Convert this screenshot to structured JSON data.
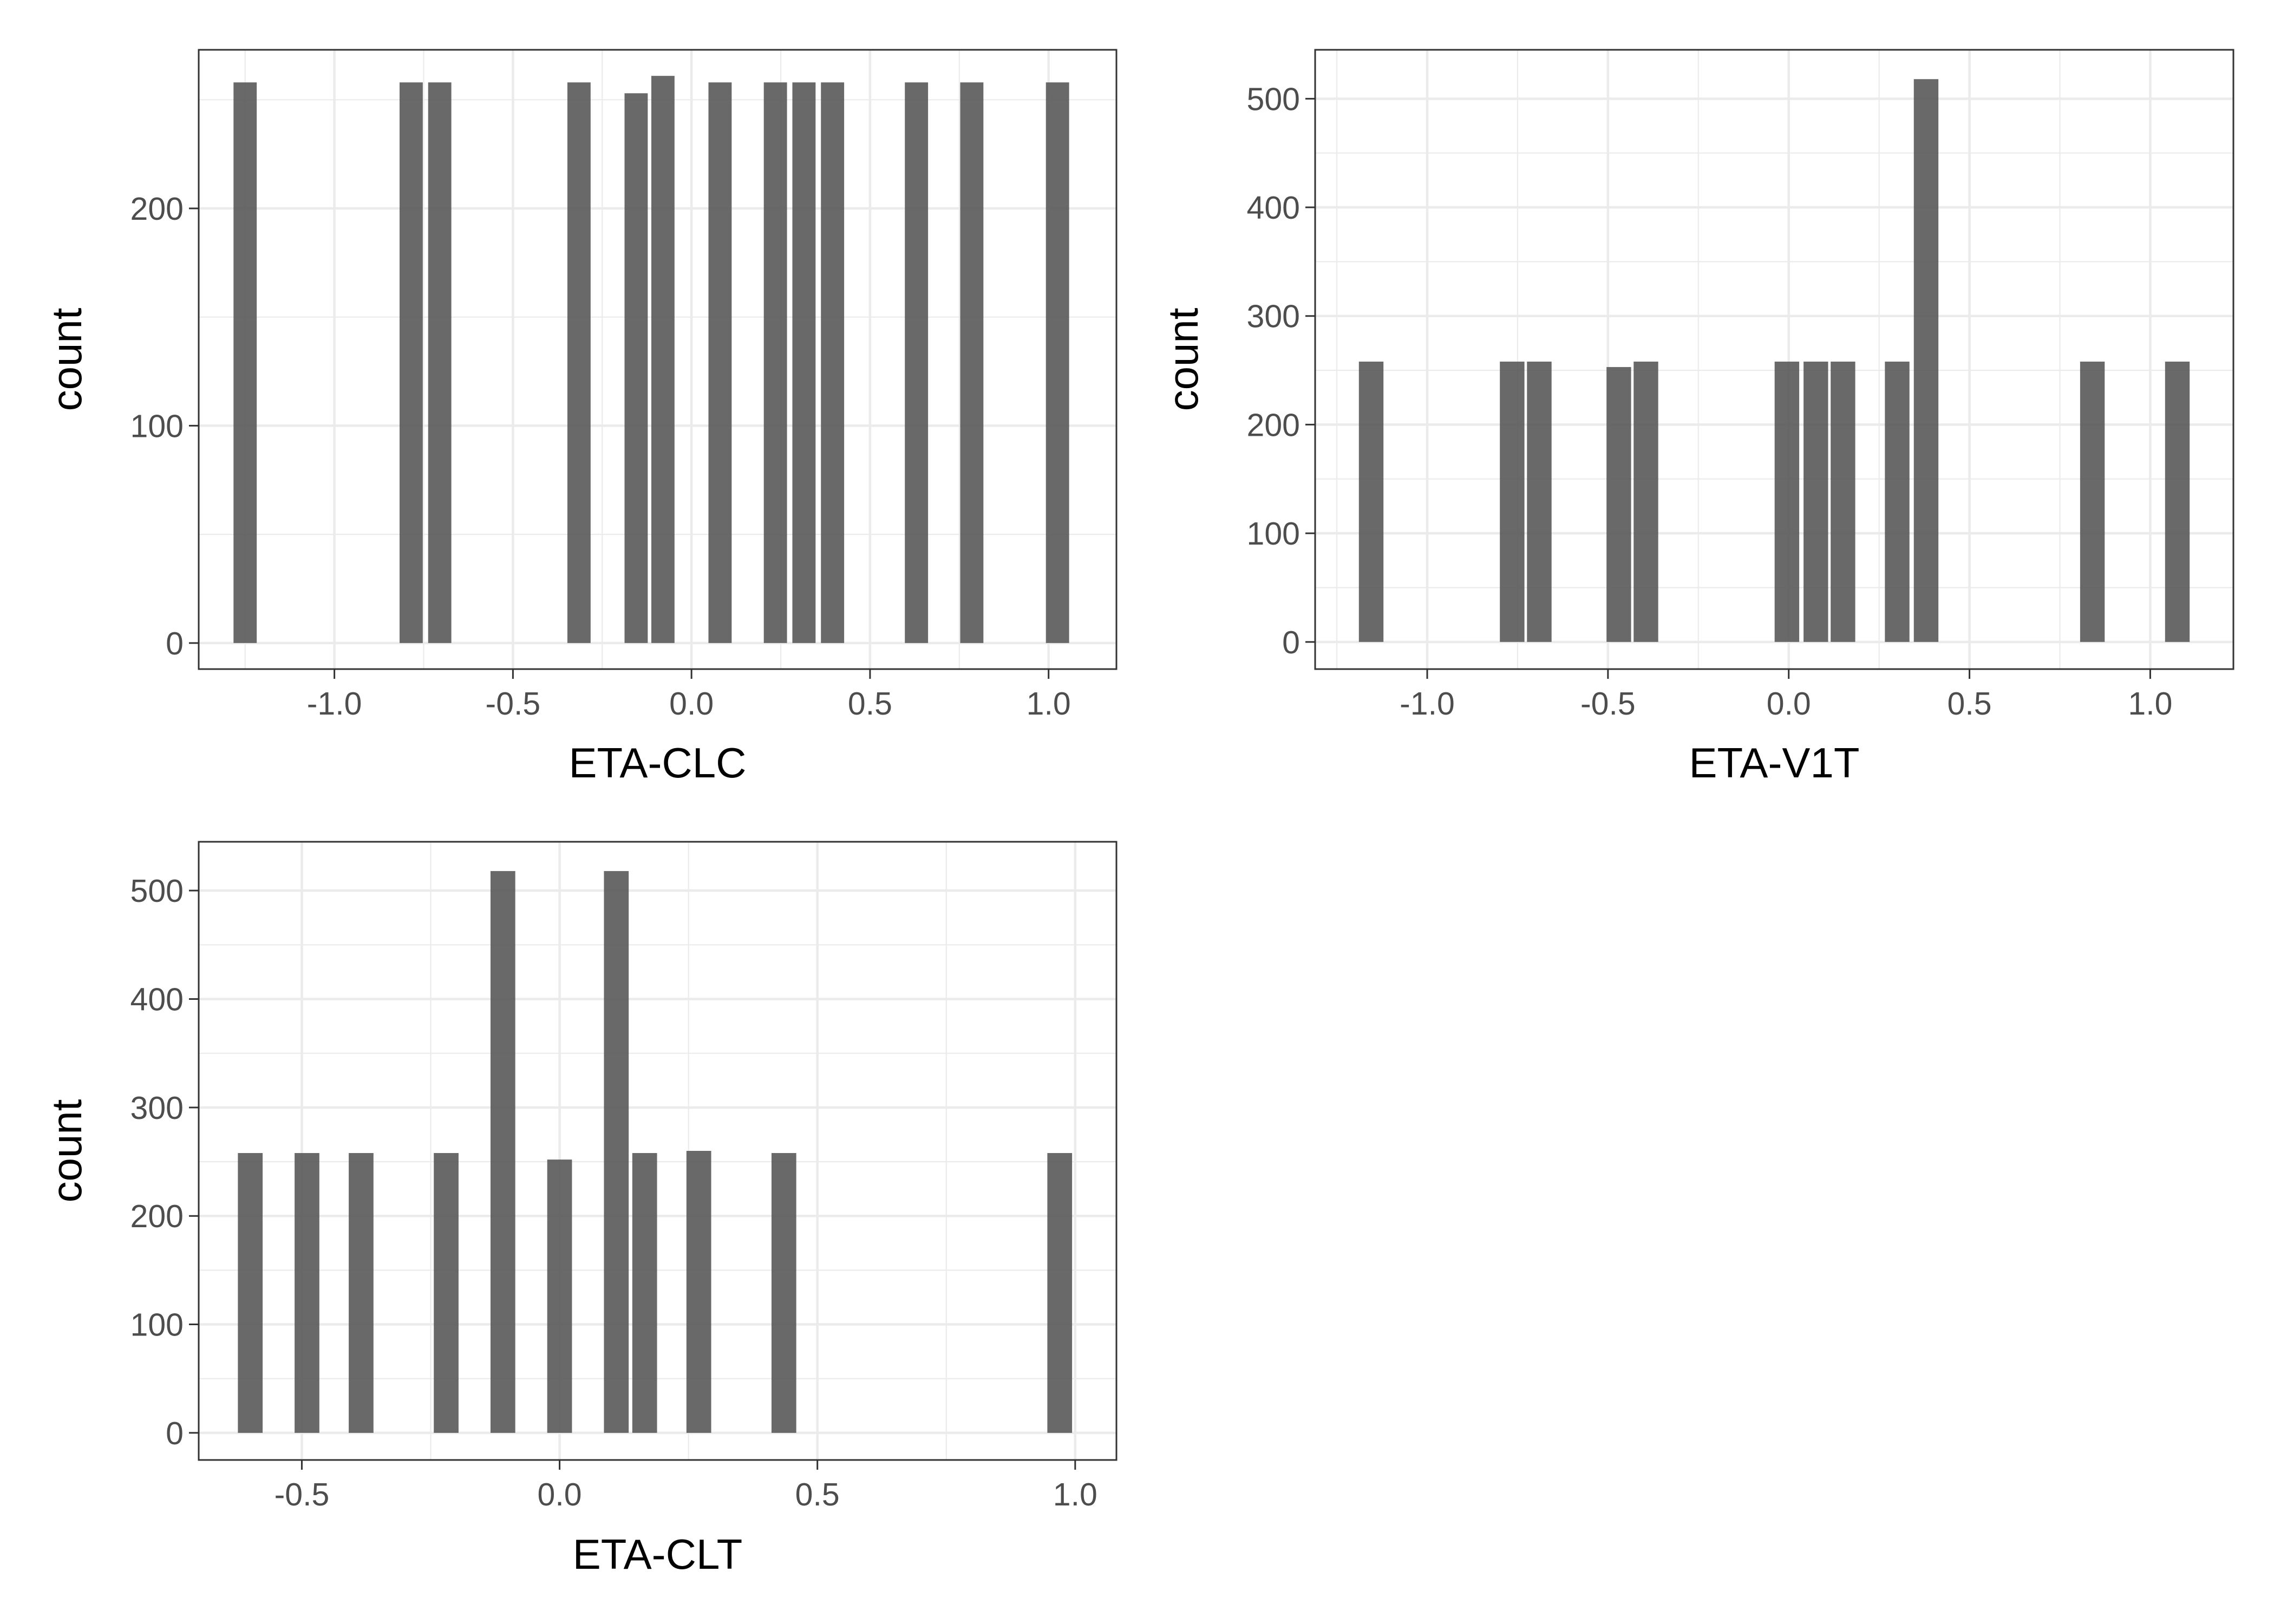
{
  "colors": {
    "bar": "#595959",
    "grid": "#ebebeb",
    "panel_border": "#333333",
    "background": "#ffffff"
  },
  "chart_data": [
    {
      "type": "bar",
      "title": "",
      "xlabel": "ETA-CLC",
      "ylabel": "count",
      "xlim": [
        -1.38,
        1.19
      ],
      "ylim": [
        -12,
        273
      ],
      "x_ticks": [
        -1.0,
        -0.5,
        0.0,
        0.5,
        1.0
      ],
      "x_tick_labels": [
        "-1.0",
        "-0.5",
        "0.0",
        "0.5",
        "1.0"
      ],
      "y_ticks": [
        0,
        100,
        200
      ],
      "y_tick_labels": [
        "0",
        "100",
        "200"
      ],
      "grid": true,
      "bin_width": 0.065,
      "x": [
        -1.25,
        -0.785,
        -0.705,
        -0.315,
        -0.155,
        -0.08,
        0.08,
        0.235,
        0.315,
        0.395,
        0.63,
        0.785,
        1.025
      ],
      "values": [
        258,
        258,
        258,
        258,
        253,
        261,
        258,
        258,
        258,
        258,
        258,
        258,
        258
      ]
    },
    {
      "type": "bar",
      "title": "",
      "xlabel": "ETA-V1T",
      "ylabel": "count",
      "xlim": [
        -1.31,
        1.23
      ],
      "ylim": [
        -25,
        545
      ],
      "x_ticks": [
        -1.0,
        -0.5,
        0.0,
        0.5,
        1.0
      ],
      "x_tick_labels": [
        "-1.0",
        "-0.5",
        "0.0",
        "0.5",
        "1.0"
      ],
      "y_ticks": [
        0,
        100,
        200,
        300,
        400,
        500
      ],
      "y_tick_labels": [
        "0",
        "100",
        "200",
        "300",
        "400",
        "500"
      ],
      "grid": true,
      "bin_width": 0.068,
      "x": [
        -1.155,
        -0.765,
        -0.69,
        -0.47,
        -0.395,
        -0.005,
        0.075,
        0.15,
        0.3,
        0.38,
        0.84,
        1.075
      ],
      "values": [
        258,
        258,
        258,
        253,
        258,
        258,
        258,
        258,
        258,
        518,
        258,
        258
      ]
    },
    {
      "type": "bar",
      "title": "",
      "xlabel": "ETA-CLT",
      "ylabel": "count",
      "xlim": [
        -0.7,
        1.08
      ],
      "ylim": [
        -25,
        545
      ],
      "x_ticks": [
        -0.5,
        0.0,
        0.5,
        1.0
      ],
      "x_tick_labels": [
        "-0.5",
        "0.0",
        "0.5",
        "1.0"
      ],
      "y_ticks": [
        0,
        100,
        200,
        300,
        400,
        500
      ],
      "y_tick_labels": [
        "0",
        "100",
        "200",
        "300",
        "400",
        "500"
      ],
      "grid": true,
      "bin_width": 0.048,
      "x": [
        -0.6,
        -0.49,
        -0.385,
        -0.22,
        -0.11,
        0.0,
        0.11,
        0.165,
        0.27,
        0.435,
        0.97
      ],
      "values": [
        258,
        258,
        258,
        258,
        518,
        252,
        518,
        258,
        260,
        258,
        258
      ]
    }
  ]
}
